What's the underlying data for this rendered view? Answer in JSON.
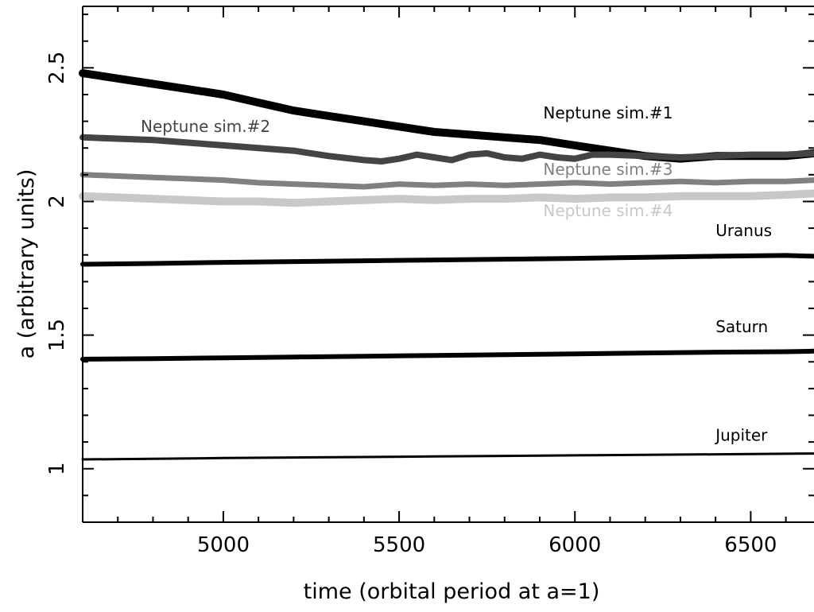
{
  "chart_data": {
    "type": "line",
    "title": "",
    "xlabel": "time (orbital period at a=1)",
    "ylabel": "a (arbitrary units)",
    "xlim": [
      4600,
      6680
    ],
    "ylim": [
      0.8,
      2.73
    ],
    "x_ticks": [
      5000,
      5500,
      6000,
      6500
    ],
    "x_tick_labels": [
      "5000",
      "5500",
      "6000",
      "6500"
    ],
    "y_ticks": [
      1,
      1.5,
      2,
      2.5
    ],
    "y_tick_labels": [
      "1",
      "1.5",
      "2",
      "2.5"
    ],
    "grid": false,
    "legend": "none",
    "series": [
      {
        "name": "Neptune sim.#1",
        "color": "#000000",
        "x": [
          4600,
          4700,
          4800,
          4900,
          5000,
          5100,
          5200,
          5300,
          5400,
          5500,
          5600,
          5700,
          5800,
          5900,
          6000,
          6100,
          6200,
          6300,
          6400,
          6500,
          6600,
          6680
        ],
        "y": [
          2.48,
          2.46,
          2.44,
          2.42,
          2.4,
          2.37,
          2.34,
          2.32,
          2.3,
          2.28,
          2.26,
          2.25,
          2.24,
          2.23,
          2.21,
          2.19,
          2.17,
          2.16,
          2.17,
          2.17,
          2.17,
          2.18
        ]
      },
      {
        "name": "Neptune sim.#2",
        "color": "#444444",
        "x": [
          4600,
          4700,
          4800,
          4900,
          5000,
          5100,
          5200,
          5300,
          5400,
          5450,
          5500,
          5550,
          5600,
          5650,
          5700,
          5750,
          5800,
          5850,
          5900,
          5950,
          6000,
          6050,
          6100,
          6200,
          6300,
          6400,
          6500,
          6600,
          6680
        ],
        "y": [
          2.24,
          2.235,
          2.23,
          2.22,
          2.21,
          2.2,
          2.19,
          2.17,
          2.155,
          2.15,
          2.16,
          2.175,
          2.165,
          2.155,
          2.175,
          2.18,
          2.165,
          2.16,
          2.175,
          2.165,
          2.16,
          2.175,
          2.175,
          2.17,
          2.165,
          2.17,
          2.175,
          2.175,
          2.18
        ]
      },
      {
        "name": "Neptune sim.#3",
        "color": "#808080",
        "x": [
          4600,
          4700,
          4800,
          4900,
          5000,
          5100,
          5200,
          5300,
          5400,
          5500,
          5600,
          5700,
          5800,
          5900,
          6000,
          6100,
          6200,
          6300,
          6400,
          6500,
          6600,
          6680
        ],
        "y": [
          2.1,
          2.095,
          2.09,
          2.085,
          2.08,
          2.07,
          2.065,
          2.06,
          2.055,
          2.065,
          2.06,
          2.065,
          2.06,
          2.065,
          2.07,
          2.065,
          2.07,
          2.075,
          2.07,
          2.075,
          2.075,
          2.08
        ]
      },
      {
        "name": "Neptune sim.#4",
        "color": "#c8c8c8",
        "x": [
          4600,
          4700,
          4800,
          4900,
          5000,
          5100,
          5200,
          5300,
          5400,
          5500,
          5600,
          5700,
          5800,
          5900,
          6000,
          6100,
          6200,
          6300,
          6400,
          6500,
          6600,
          6680
        ],
        "y": [
          2.02,
          2.015,
          2.01,
          2.005,
          2.0,
          2.0,
          1.995,
          2.0,
          2.005,
          2.01,
          2.005,
          2.01,
          2.01,
          2.015,
          2.01,
          2.015,
          2.015,
          2.02,
          2.02,
          2.02,
          2.025,
          2.03
        ]
      },
      {
        "name": "Uranus",
        "color": "#000000",
        "x": [
          4600,
          4800,
          5000,
          5200,
          5400,
          5600,
          5800,
          6000,
          6200,
          6400,
          6600,
          6680
        ],
        "y": [
          1.765,
          1.768,
          1.772,
          1.775,
          1.778,
          1.781,
          1.784,
          1.787,
          1.791,
          1.795,
          1.798,
          1.795
        ]
      },
      {
        "name": "Saturn",
        "color": "#000000",
        "x": [
          4600,
          4800,
          5000,
          5200,
          5400,
          5600,
          5800,
          6000,
          6200,
          6400,
          6600,
          6680
        ],
        "y": [
          1.41,
          1.412,
          1.415,
          1.418,
          1.421,
          1.424,
          1.427,
          1.43,
          1.433,
          1.436,
          1.438,
          1.44
        ]
      },
      {
        "name": "Jupiter",
        "color": "#000000",
        "x": [
          4600,
          4800,
          5000,
          5200,
          5400,
          5600,
          5800,
          6000,
          6200,
          6400,
          6600,
          6680
        ],
        "y": [
          1.035,
          1.037,
          1.04,
          1.042,
          1.044,
          1.046,
          1.048,
          1.05,
          1.052,
          1.054,
          1.056,
          1.057
        ]
      }
    ],
    "annotations": [
      {
        "text": "Neptune sim.#1",
        "x": 5910,
        "y": 2.31,
        "color": "#000000"
      },
      {
        "text": "Neptune sim.#2",
        "x": 4765,
        "y": 2.26,
        "color": "#444444"
      },
      {
        "text": "Neptune sim.#3",
        "x": 5910,
        "y": 2.1,
        "color": "#808080"
      },
      {
        "text": "Neptune sim.#4",
        "x": 5910,
        "y": 1.945,
        "color": "#c8c8c8"
      },
      {
        "text": "Uranus",
        "x": 6400,
        "y": 1.87,
        "color": "#000000"
      },
      {
        "text": "Saturn",
        "x": 6400,
        "y": 1.51,
        "color": "#000000"
      },
      {
        "text": "Jupiter",
        "x": 6400,
        "y": 1.105,
        "color": "#000000"
      }
    ]
  }
}
